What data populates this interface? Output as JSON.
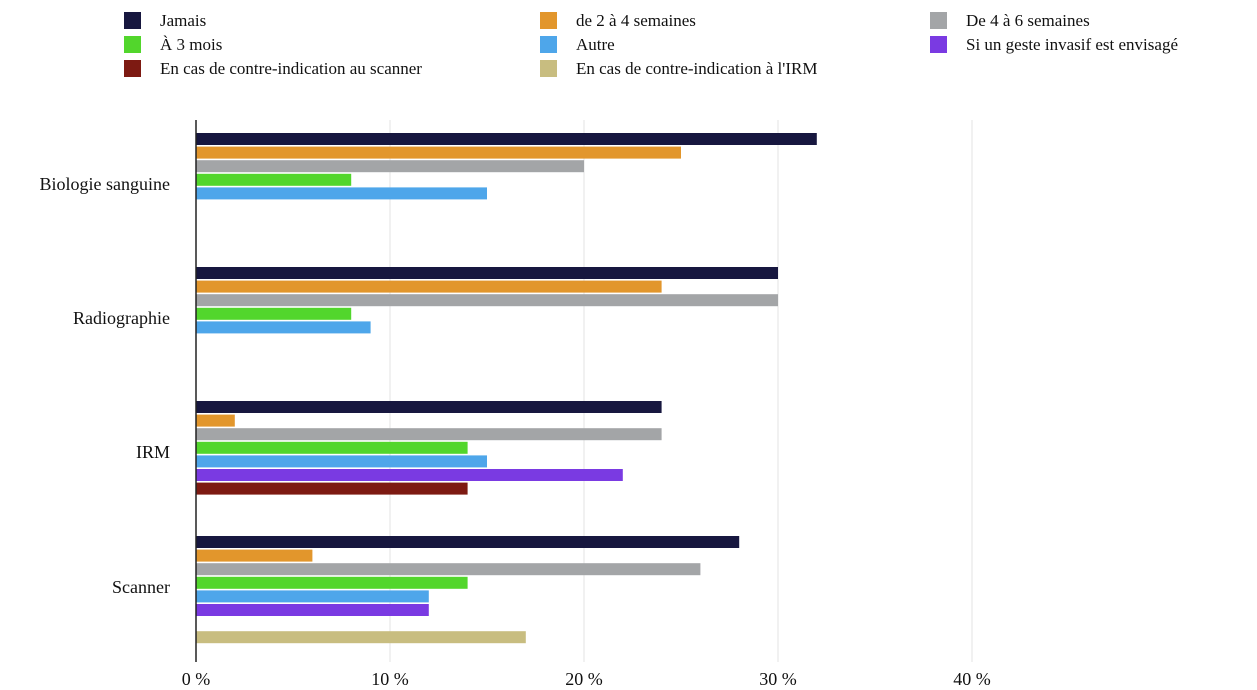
{
  "chart_data": {
    "type": "bar",
    "orientation": "horizontal",
    "categories": [
      "Biologie sanguine",
      "Radiographie",
      "IRM",
      "Scanner"
    ],
    "series": [
      {
        "name": "Jamais",
        "color": "#17173f",
        "values": [
          32,
          30,
          24,
          28
        ]
      },
      {
        "name": "de 2 à 4 semaines",
        "color": "#e2962c",
        "values": [
          25,
          24,
          2,
          6
        ]
      },
      {
        "name": "De 4 à 6 semaines",
        "color": "#a3a5a7",
        "values": [
          20,
          30,
          24,
          26
        ]
      },
      {
        "name": "À 3 mois",
        "color": "#52d62c",
        "values": [
          8,
          8,
          14,
          14
        ]
      },
      {
        "name": "Autre",
        "color": "#4ea6ea",
        "values": [
          15,
          9,
          15,
          12
        ]
      },
      {
        "name": "Si un geste invasif est envisagé",
        "color": "#7a3ae2",
        "values": [
          0,
          0,
          22,
          12
        ]
      },
      {
        "name": "En cas de contre-indication au scanner",
        "color": "#7d1a12",
        "values": [
          0,
          0,
          14,
          0
        ]
      },
      {
        "name": "En cas de contre-indication à l'IRM",
        "color": "#c8bd80",
        "values": [
          0,
          0,
          0,
          17
        ]
      }
    ],
    "xlim": [
      0,
      40
    ],
    "xticks": [
      0,
      10,
      20,
      30,
      40
    ],
    "xtick_labels": [
      "0 %",
      "10 %",
      "20 %",
      "30 %",
      "40 %"
    ],
    "grid": "vertical",
    "legend_position": "top",
    "title": "",
    "xlabel": "",
    "ylabel": ""
  }
}
